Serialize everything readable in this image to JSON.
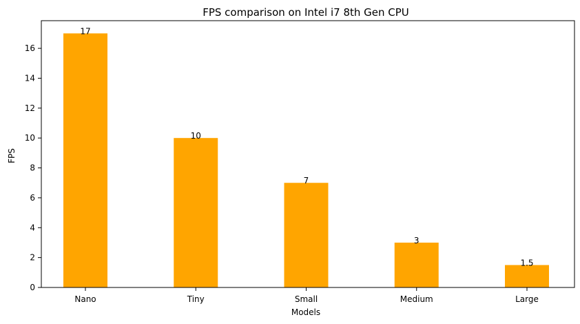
{
  "chart_data": {
    "type": "bar",
    "title": "FPS comparison on Intel i7 8th Gen CPU",
    "xlabel": "Models",
    "ylabel": "FPS",
    "categories": [
      "Nano",
      "Tiny",
      "Small",
      "Medium",
      "Large"
    ],
    "values": [
      17,
      10,
      7,
      3,
      1.5
    ],
    "data_labels": [
      "17",
      "10",
      "7",
      "3",
      "1.5"
    ],
    "ylim": [
      0,
      17.85
    ],
    "yticks": [
      0,
      2,
      4,
      6,
      8,
      10,
      12,
      14,
      16
    ],
    "grid": false,
    "legend": "none",
    "bar_color": "#ffa500"
  }
}
